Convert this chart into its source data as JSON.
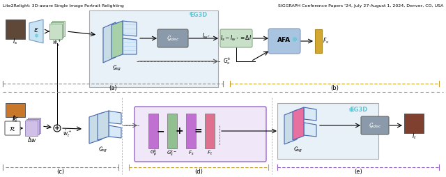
{
  "title_left": "Lite2Relight: 3D-aware Single Image Portrait Relighting",
  "title_right": "SIGGRAPH Conference Papers '24, July 27-August 1, 2024, Denver, CO, USA",
  "bg_color": "#f5f5f0",
  "panel_a_label": "(a)",
  "panel_b_label": "(b)",
  "panel_c_label": "(c)",
  "panel_d_label": "(d)",
  "panel_e_label": "(e)",
  "eg3d_color": "#5bc8d4",
  "eg3d_label": "EG3D",
  "gdec_color": "#8a9aaa",
  "gdec_label": "G_dec",
  "afa_color": "#a8c4e0",
  "afa_label": "AFA",
  "green_feature_color": "#90c090",
  "light_green_box_color": "#d4ecd4",
  "light_blue_box_color": "#ddeeff",
  "purple_box_color": "#d8b8e8",
  "gold_color": "#d4a830",
  "pink_color": "#e87090",
  "purple_dark_color": "#7050a0",
  "olive_color": "#8a9028",
  "lavender_color": "#c8b8e8",
  "dashed_line_color_ab": "#888888",
  "dashed_line_color_b": "#c8a030",
  "dashed_line_color_c": "#888888",
  "dashed_line_color_d": "#c8a030",
  "dashed_line_color_e": "#9060c0"
}
